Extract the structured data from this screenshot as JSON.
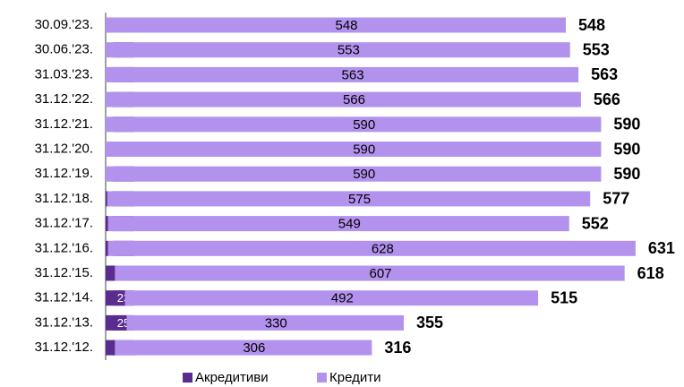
{
  "chart_data": {
    "type": "stacked-barh",
    "categories": [
      "30.09.'23.",
      "30.06.'23.",
      "31.03.'23.",
      "31.12.'22.",
      "31.12.'21.",
      "31.12.'20.",
      "31.12.'19.",
      "31.12.'18.",
      "31.12.'17.",
      "31.12.'16.",
      "31.12.'15.",
      "31.12.'14.",
      "31.12.'13.",
      "31.12.'12."
    ],
    "series": [
      {
        "name": "Акредитиви",
        "color": "#5b2c8f",
        "values": [
          0,
          0,
          0,
          0,
          0,
          0,
          0,
          2,
          3,
          3,
          11,
          23,
          25,
          11
        ]
      },
      {
        "name": "Кредити",
        "color": "#b392ee",
        "values": [
          548,
          553,
          563,
          566,
          590,
          590,
          590,
          575,
          549,
          628,
          607,
          492,
          330,
          306
        ]
      }
    ],
    "totals": [
      548,
      553,
      563,
      566,
      590,
      590,
      590,
      577,
      552,
      631,
      618,
      515,
      355,
      316
    ]
  }
}
